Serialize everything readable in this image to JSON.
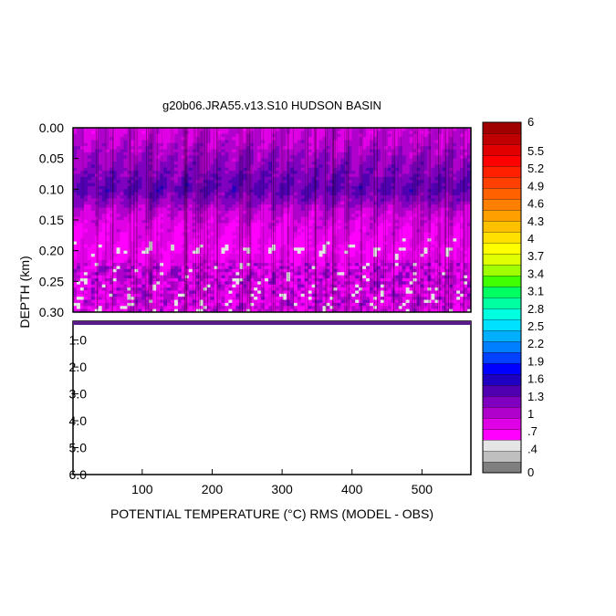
{
  "chart_data": {
    "type": "heatmap",
    "title": "g20b06.JRA55.v13.S10 HUDSON BASIN",
    "xlabel": "POTENTIAL TEMPERATURE (°C) RMS (MODEL - OBS)",
    "ylabel": "DEPTH (km)",
    "xlim": [
      1,
      570
    ],
    "x_ticks": [
      "100",
      "200",
      "300",
      "400",
      "500"
    ],
    "x_tick_values": [
      100,
      200,
      300,
      400,
      500
    ],
    "upper_panel": {
      "ylim": [
        0.0,
        0.3
      ],
      "y_ticks": [
        "0.00",
        "0.05",
        "0.10",
        "0.15",
        "0.20",
        "0.25",
        "0.30"
      ],
      "y_tick_values": [
        0.0,
        0.05,
        0.1,
        0.15,
        0.2,
        0.25,
        0.3
      ],
      "depth_profile": [
        {
          "depth": 0.0,
          "rms": 0.9
        },
        {
          "depth": 0.02,
          "rms": 0.95
        },
        {
          "depth": 0.05,
          "rms": 1.1
        },
        {
          "depth": 0.08,
          "rms": 1.25
        },
        {
          "depth": 0.1,
          "rms": 1.35
        },
        {
          "depth": 0.12,
          "rms": 1.15
        },
        {
          "depth": 0.14,
          "rms": 0.9
        },
        {
          "depth": 0.16,
          "rms": 0.8
        },
        {
          "depth": 0.18,
          "rms": 0.75
        },
        {
          "depth": 0.2,
          "rms": 0.65
        },
        {
          "depth": 0.23,
          "rms": 0.9
        },
        {
          "depth": 0.26,
          "rms": 0.85
        },
        {
          "depth": 0.3,
          "rms": 0.8
        }
      ]
    },
    "lower_panel": {
      "ylim": [
        0.3,
        6.0
      ],
      "y_ticks": [
        "1.0",
        "2.0",
        "3.0",
        "4.0",
        "5.0",
        "6.0"
      ],
      "y_tick_values": [
        1.0,
        2.0,
        3.0,
        4.0,
        5.0,
        6.0
      ]
    },
    "colorbar": {
      "min": 0,
      "max": 6,
      "labels": [
        "6",
        "5.5",
        "5.2",
        "4.9",
        "4.6",
        "4.3",
        "4",
        "3.7",
        "3.4",
        "3.1",
        "2.8",
        "2.5",
        "2.2",
        "1.9",
        "1.6",
        "1.3",
        "1",
        ".7",
        ".4",
        "0"
      ],
      "label_values": [
        6,
        5.5,
        5.2,
        4.9,
        4.6,
        4.3,
        4,
        3.7,
        3.4,
        3.1,
        2.8,
        2.5,
        2.2,
        1.9,
        1.6,
        1.3,
        1,
        0.7,
        0.4,
        0
      ],
      "colors": [
        "#7f7f7f",
        "#bfbfbf",
        "#e5e5e5",
        "#ff00ff",
        "#e000e6",
        "#b000cc",
        "#8000c0",
        "#5000b0",
        "#2000c0",
        "#0000ff",
        "#0040ff",
        "#0080ff",
        "#00b0ff",
        "#00e0ff",
        "#00ffe0",
        "#00ffa0",
        "#00ff60",
        "#40ff00",
        "#a0ff00",
        "#e0ff00",
        "#ffff00",
        "#ffe000",
        "#ffc000",
        "#ffa000",
        "#ff8000",
        "#ff6000",
        "#ff4000",
        "#ff2000",
        "#ff0000",
        "#e00000",
        "#c00000",
        "#a00000"
      ]
    }
  }
}
